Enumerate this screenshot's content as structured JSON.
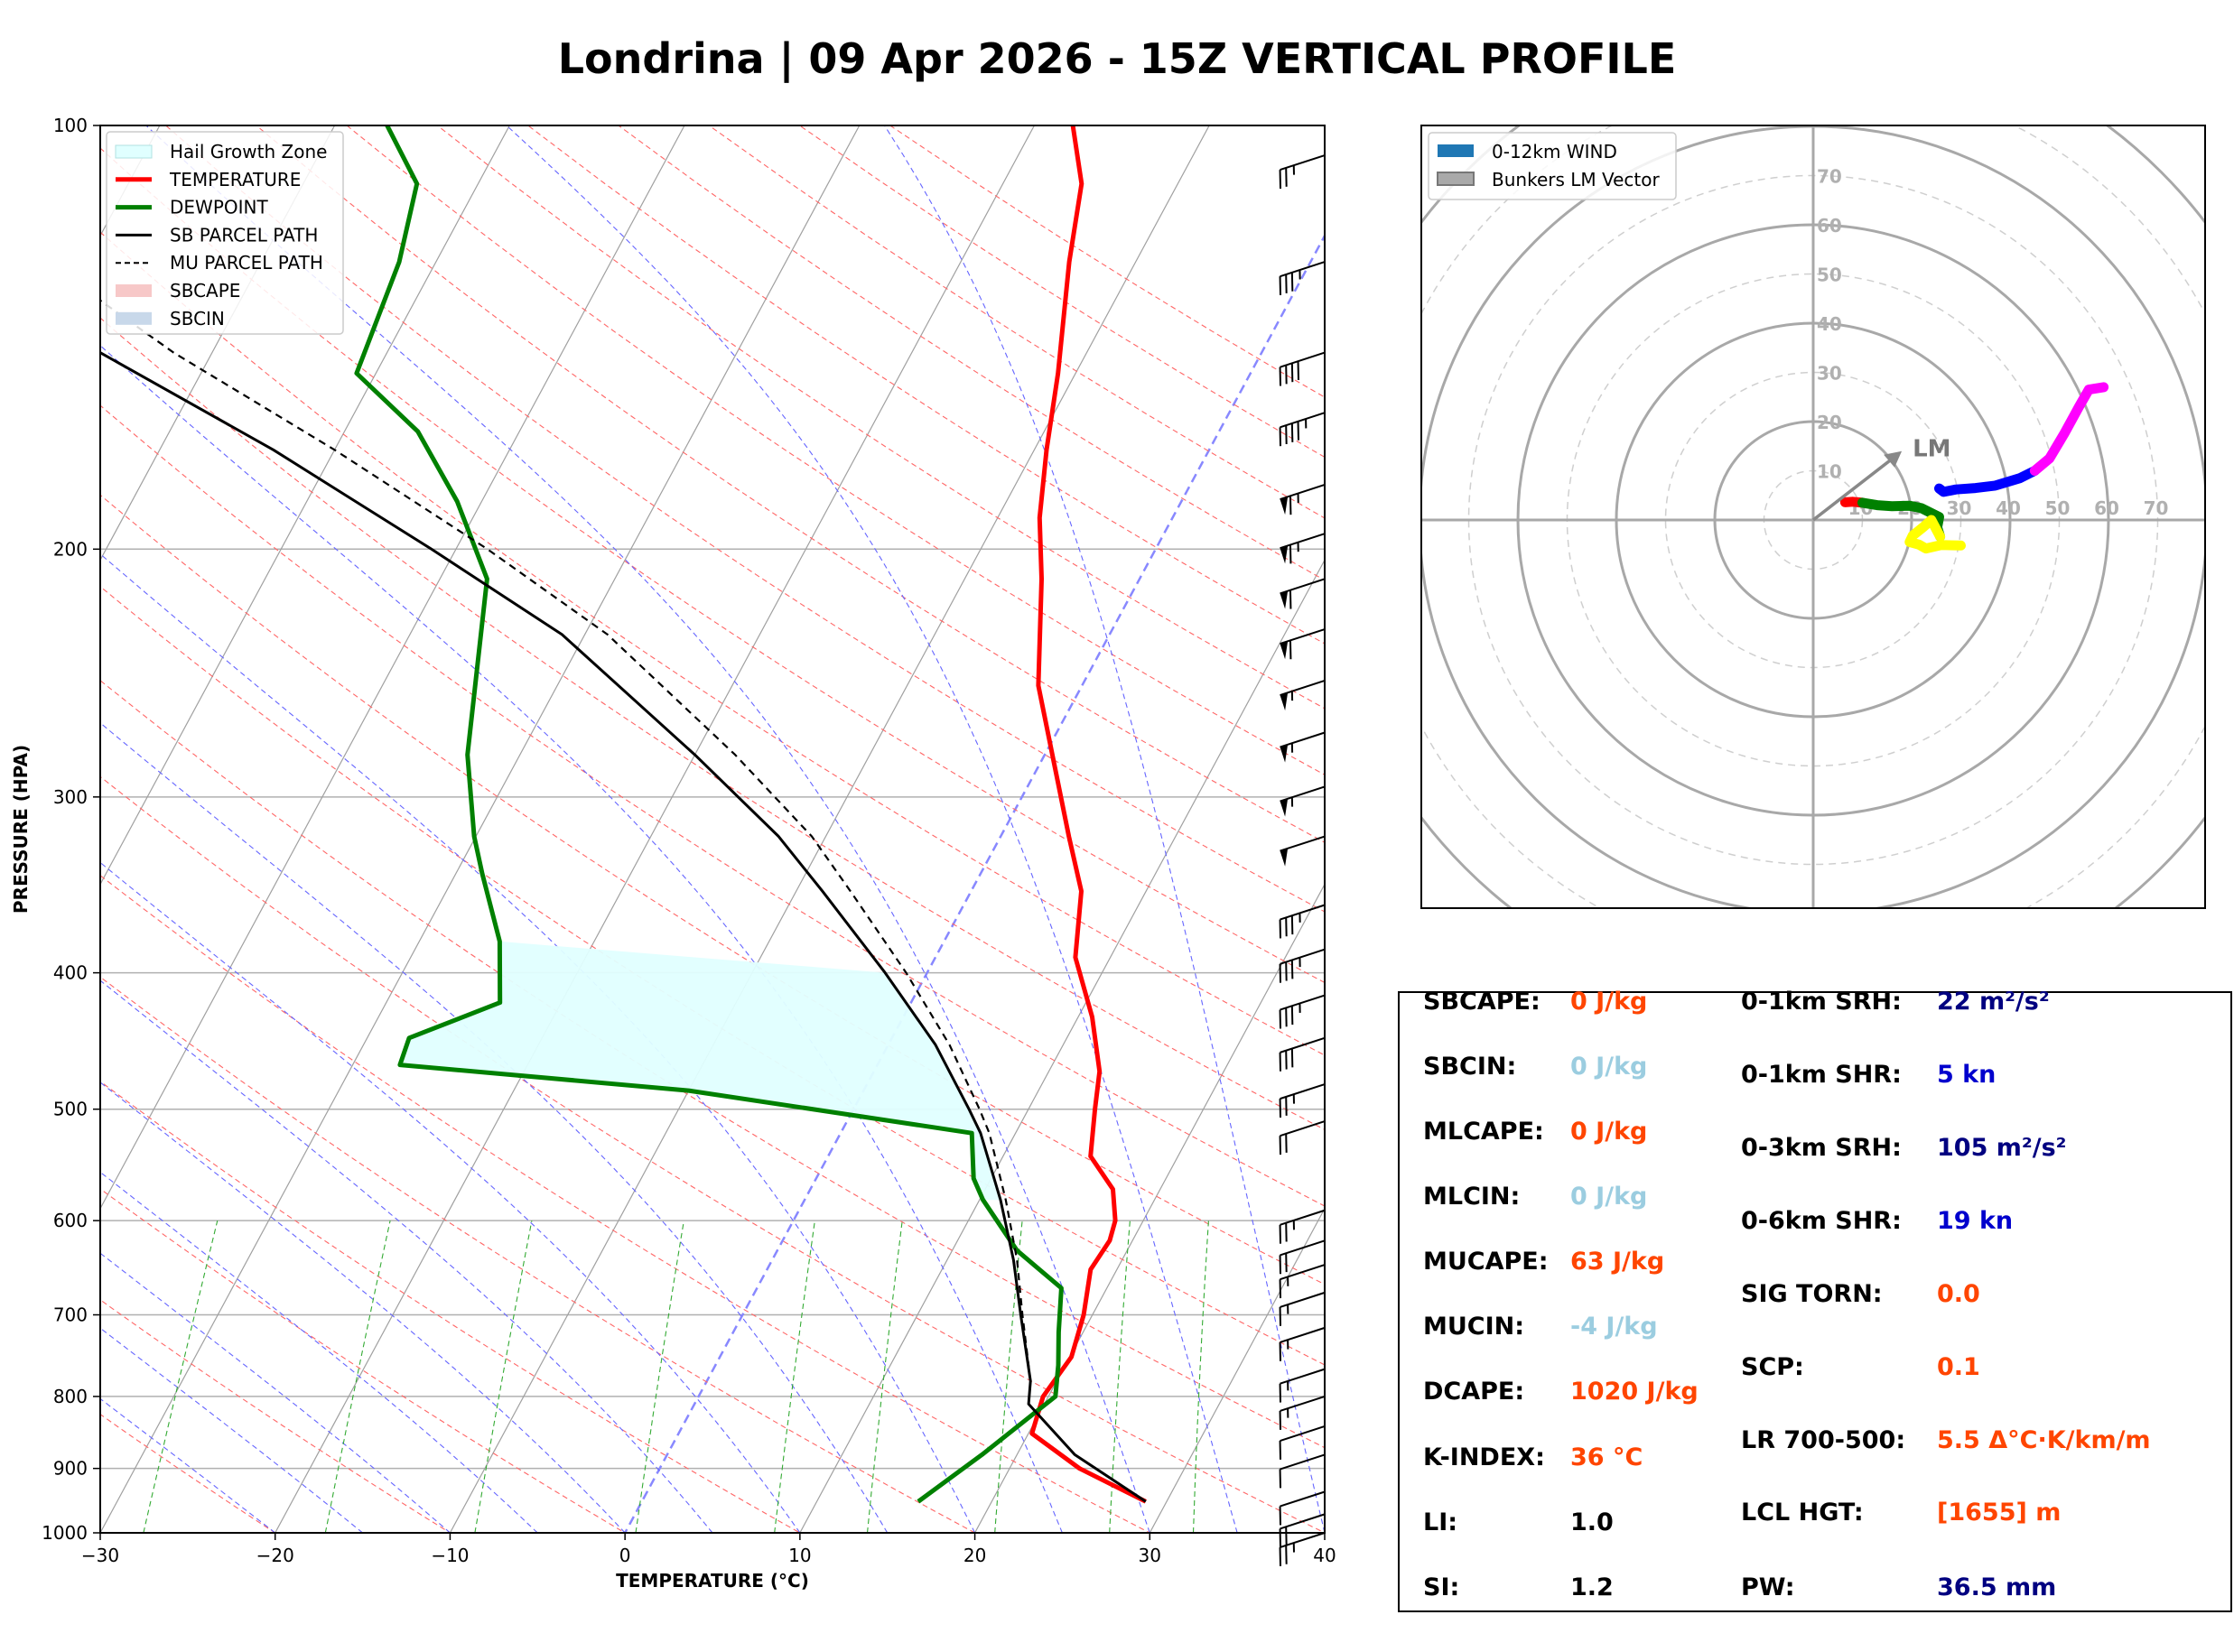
{
  "title": "Londrina | 09 Apr 2026 - 15Z VERTICAL PROFILE",
  "chart_data": [
    {
      "type": "line",
      "subtype": "skew-t log-p sounding",
      "xlabel": "TEMPERATURE (°C)",
      "ylabel": "PRESSURE (HPA)",
      "xlim": [
        -30,
        40
      ],
      "ylim": [
        1000,
        100
      ],
      "y_scale": "log",
      "x_ticks": [
        -30,
        -20,
        -10,
        0,
        10,
        20,
        30,
        40
      ],
      "x_tick_labels": [
        "−30",
        "−20",
        "−10",
        "0",
        "10",
        "20",
        "30",
        "40"
      ],
      "y_ticks": [
        100,
        200,
        300,
        400,
        500,
        600,
        700,
        800,
        900,
        1000
      ],
      "grid": true,
      "legend_position": "top-left",
      "legend": [
        "Hail Growth Zone",
        "TEMPERATURE",
        "DEWPOINT",
        "SB PARCEL PATH",
        "MU PARCEL PATH",
        "SBCAPE",
        "SBCIN"
      ],
      "colors": {
        "temperature": "#ff0000",
        "dewpoint": "#008000",
        "sb_parcel": "#000000",
        "mu_parcel": "#000000",
        "hail_zone": "#e0ffff",
        "sbcape": "#f5c0c0",
        "sbcin": "#c0d4e8",
        "dry_adiabat": "#ff6666",
        "moist_adiabat": "#6666ff",
        "mixing_ratio": "#33aa33"
      },
      "series": [
        {
          "name": "TEMPERATURE",
          "points": [
            [
              28.8,
              950
            ],
            [
              24,
              900
            ],
            [
              20.2,
              850
            ],
            [
              19.7,
              800
            ],
            [
              20.1,
              750
            ],
            [
              19.5,
              700
            ],
            [
              18.5,
              650
            ],
            [
              18.7,
              620
            ],
            [
              18.4,
              600
            ],
            [
              17.3,
              570
            ],
            [
              15,
              540
            ],
            [
              13.8,
              500
            ],
            [
              12.9,
              470
            ],
            [
              10.8,
              430
            ],
            [
              8,
              390
            ],
            [
              6.3,
              350
            ],
            [
              3.9,
              320
            ],
            [
              -2.5,
              250
            ],
            [
              -5.6,
              210
            ],
            [
              -7.6,
              190
            ],
            [
              -9.3,
              170
            ],
            [
              -11,
              150
            ],
            [
              -13.8,
              125
            ],
            [
              -15.5,
              110
            ],
            [
              -17.8,
              100
            ]
          ]
        },
        {
          "name": "DEWPOINT",
          "points": [
            [
              15.8,
              950
            ],
            [
              18,
              880
            ],
            [
              20.4,
              800
            ],
            [
              19.6,
              760
            ],
            [
              18.6,
              720
            ],
            [
              17.4,
              670
            ],
            [
              13.7,
              630
            ],
            [
              10.2,
              580
            ],
            [
              9,
              560
            ],
            [
              7.5,
              520
            ],
            [
              -10,
              485
            ],
            [
              -27.3,
              465
            ],
            [
              -27.6,
              445
            ],
            [
              -23.5,
              420
            ],
            [
              -25.4,
              380
            ],
            [
              -28.5,
              340
            ],
            [
              -30.1,
              320
            ],
            [
              -33,
              280
            ],
            [
              -37.3,
              210
            ],
            [
              -41.4,
              185
            ],
            [
              -45.8,
              165
            ],
            [
              -51.1,
              150
            ],
            [
              -52.1,
              125
            ],
            [
              -53.5,
              110
            ],
            [
              -57,
              100
            ]
          ]
        },
        {
          "name": "SB PARCEL PATH",
          "points": [
            [
              28.8,
              950
            ],
            [
              23.3,
              880
            ],
            [
              19.1,
              810
            ],
            [
              18.5,
              780
            ],
            [
              15.9,
              700
            ],
            [
              13.8,
              640
            ],
            [
              11.2,
              580
            ],
            [
              8,
              520
            ],
            [
              6.6,
              500
            ],
            [
              2.7,
              450
            ],
            [
              -2.4,
              400
            ],
            [
              -8.5,
              350
            ],
            [
              -12.7,
              320
            ],
            [
              -20,
              280
            ],
            [
              -31.3,
              230
            ],
            [
              -41.4,
              200
            ],
            [
              -53.5,
              170
            ],
            [
              -66.4,
              145
            ],
            [
              -76.7,
              125
            ],
            [
              -86,
              110
            ],
            [
              -91.5,
              100
            ]
          ]
        },
        {
          "name": "MU PARCEL PATH",
          "points": [
            [
              28.8,
              950
            ],
            [
              23.3,
              880
            ],
            [
              19.1,
              810
            ],
            [
              18.5,
              780
            ],
            [
              16,
              700
            ],
            [
              14,
              640
            ],
            [
              11.5,
              580
            ],
            [
              8.5,
              520
            ],
            [
              7.2,
              500
            ],
            [
              3.5,
              450
            ],
            [
              -1.2,
              400
            ],
            [
              -6.9,
              350
            ],
            [
              -10.8,
              320
            ],
            [
              -17.7,
              280
            ],
            [
              -28.7,
              230
            ],
            [
              -38.2,
              200
            ],
            [
              -50,
              170
            ],
            [
              -62.2,
              145
            ],
            [
              -72.3,
              125
            ],
            [
              -81.6,
              110
            ],
            [
              -87.1,
              100
            ]
          ]
        }
      ],
      "hail_growth_zone": {
        "pressure_top": 380,
        "pressure_bottom": 590
      },
      "wind_barbs": [
        {
          "p": 1000,
          "speed_kn": 25
        },
        {
          "p": 970,
          "speed_kn": 20
        },
        {
          "p": 935,
          "speed_kn": 10
        },
        {
          "p": 880,
          "speed_kn": 10
        },
        {
          "p": 840,
          "speed_kn": 10
        },
        {
          "p": 800,
          "speed_kn": 15
        },
        {
          "p": 765,
          "speed_kn": 15
        },
        {
          "p": 715,
          "speed_kn": 15
        },
        {
          "p": 675,
          "speed_kn": 15
        },
        {
          "p": 645,
          "speed_kn": 15
        },
        {
          "p": 620,
          "speed_kn": 20
        },
        {
          "p": 590,
          "speed_kn": 25
        },
        {
          "p": 510,
          "speed_kn": 20
        },
        {
          "p": 480,
          "speed_kn": 25
        },
        {
          "p": 445,
          "speed_kn": 30
        },
        {
          "p": 415,
          "speed_kn": 35
        },
        {
          "p": 385,
          "speed_kn": 35
        },
        {
          "p": 358,
          "speed_kn": 35
        },
        {
          "p": 320,
          "speed_kn": 50
        },
        {
          "p": 295,
          "speed_kn": 55
        },
        {
          "p": 270,
          "speed_kn": 55
        },
        {
          "p": 248,
          "speed_kn": 55
        },
        {
          "p": 228,
          "speed_kn": 60
        },
        {
          "p": 210,
          "speed_kn": 60
        },
        {
          "p": 195,
          "speed_kn": 65
        },
        {
          "p": 180,
          "speed_kn": 65
        },
        {
          "p": 160,
          "speed_kn": 45
        },
        {
          "p": 145,
          "speed_kn": 40
        },
        {
          "p": 125,
          "speed_kn": 35
        },
        {
          "p": 105,
          "speed_kn": 25
        }
      ]
    },
    {
      "type": "line",
      "subtype": "hodograph",
      "ring_labels": [
        "10",
        "20",
        "30",
        "40",
        "50",
        "60",
        "70"
      ],
      "ring_label_values": [
        10,
        20,
        30,
        40,
        50,
        60,
        70
      ],
      "legend_position": "top-left",
      "legend": [
        "0-12km WIND",
        "Bunkers LM Vector"
      ],
      "lm_label": "LM",
      "lm_vector": [
        18,
        14
      ],
      "series_colors": [
        "#ff0000",
        "#008000",
        "#ffff00",
        "#0000ff",
        "#ff00ff"
      ],
      "segments": [
        {
          "color": "#ff0000",
          "points": [
            [
              6.5,
              3.6
            ],
            [
              8,
              3.7
            ],
            [
              10,
              3.5
            ]
          ]
        },
        {
          "color": "#008000",
          "points": [
            [
              10,
              3.5
            ],
            [
              13,
              3
            ],
            [
              16,
              2.8
            ],
            [
              19.5,
              2.9
            ],
            [
              22,
              2.4
            ],
            [
              25.6,
              0.6
            ],
            [
              25.2,
              -1.5
            ],
            [
              25.8,
              -3.4
            ]
          ]
        },
        {
          "color": "#ffff00",
          "points": [
            [
              25.8,
              -3.4
            ],
            [
              24,
              0
            ],
            [
              22.3,
              -1.5
            ],
            [
              20.2,
              -3.2
            ],
            [
              19.6,
              -4.5
            ],
            [
              21.5,
              -5
            ],
            [
              22.9,
              -5.8
            ],
            [
              26,
              -5.1
            ],
            [
              30,
              -5.2
            ]
          ]
        },
        {
          "color": "#0000ff",
          "points": [
            [
              25.6,
              6.4
            ],
            [
              26.5,
              5.7
            ],
            [
              29,
              6.2
            ],
            [
              33,
              6.5
            ],
            [
              37,
              7
            ],
            [
              42,
              8.5
            ],
            [
              45,
              10
            ]
          ]
        },
        {
          "color": "#ff00ff",
          "points": [
            [
              45,
              10
            ],
            [
              48,
              12.5
            ],
            [
              51,
              17.5
            ],
            [
              54,
              23
            ],
            [
              56,
              26.5
            ],
            [
              59,
              27
            ]
          ]
        }
      ]
    }
  ],
  "params": {
    "left": [
      {
        "label": "SBCAPE:",
        "value": "0 J/kg",
        "color": "#ff4500"
      },
      {
        "label": "SBCIN:",
        "value": "0 J/kg",
        "color": "#9bcde0"
      },
      {
        "label": "MLCAPE:",
        "value": "0 J/kg",
        "color": "#ff4500"
      },
      {
        "label": "MLCIN:",
        "value": "0 J/kg",
        "color": "#9bcde0"
      },
      {
        "label": "MUCAPE:",
        "value": "63 J/kg",
        "color": "#ff4500"
      },
      {
        "label": "MUCIN:",
        "value": "-4 J/kg",
        "color": "#9bcde0"
      },
      {
        "label": "DCAPE:",
        "value": "1020 J/kg",
        "color": "#ff4500"
      },
      {
        "label": "K-INDEX:",
        "value": "36 °C",
        "color": "#ff4500"
      },
      {
        "label": "LI:",
        "value": "1.0",
        "color": "#000000"
      },
      {
        "label": "SI:",
        "value": "1.2",
        "color": "#000000"
      }
    ],
    "right": [
      {
        "label": "0-1km SRH:",
        "value": "22 m²/s²",
        "color": "#000080"
      },
      {
        "label": "0-1km SHR:",
        "value": "5 kn",
        "color": "#0000cd"
      },
      {
        "label": "0-3km SRH:",
        "value": "105 m²/s²",
        "color": "#000080"
      },
      {
        "label": "0-6km SHR:",
        "value": "19 kn",
        "color": "#0000cd"
      },
      {
        "label": "SIG TORN:",
        "value": "0.0",
        "color": "#ff4500"
      },
      {
        "label": "SCP:",
        "value": "0.1",
        "color": "#ff4500"
      },
      {
        "label": "LR 700-500:",
        "value": "5.5 Δ°C·K/km/m",
        "color": "#ff4500"
      },
      {
        "label": "LCL HGT:",
        "value": "[1655] m",
        "color": "#ff4500"
      },
      {
        "label": "PW:",
        "value": "36.5 mm",
        "color": "#000080"
      }
    ]
  }
}
